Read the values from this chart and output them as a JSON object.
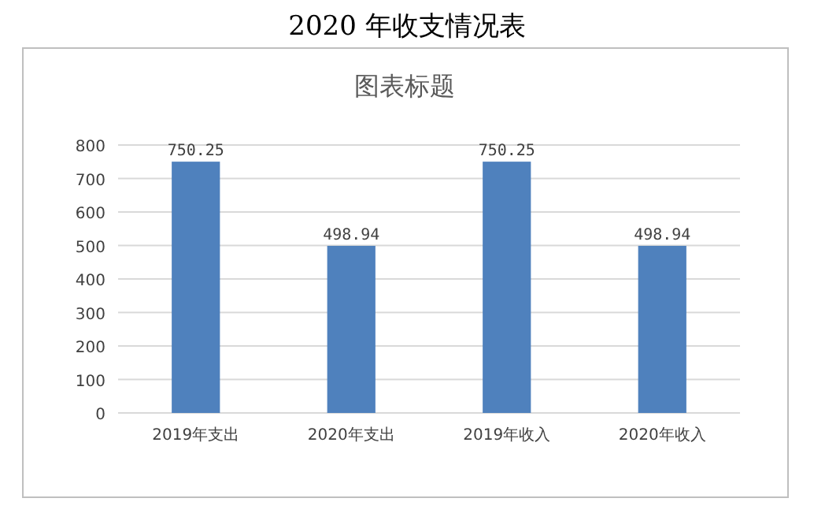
{
  "chart_data": {
    "type": "bar",
    "title": "2020 年收支情况表",
    "subtitle": "图表标题",
    "categories": [
      "2019年支出",
      "2020年支出",
      "2019年收入",
      "2020年收入"
    ],
    "values": [
      750.25,
      498.94,
      750.25,
      498.94
    ],
    "color": "#4f81bd",
    "ylim": [
      0,
      800
    ],
    "yticks": [
      0,
      100,
      200,
      300,
      400,
      500,
      600,
      700,
      800
    ],
    "grid": "y",
    "data_labels": true
  }
}
